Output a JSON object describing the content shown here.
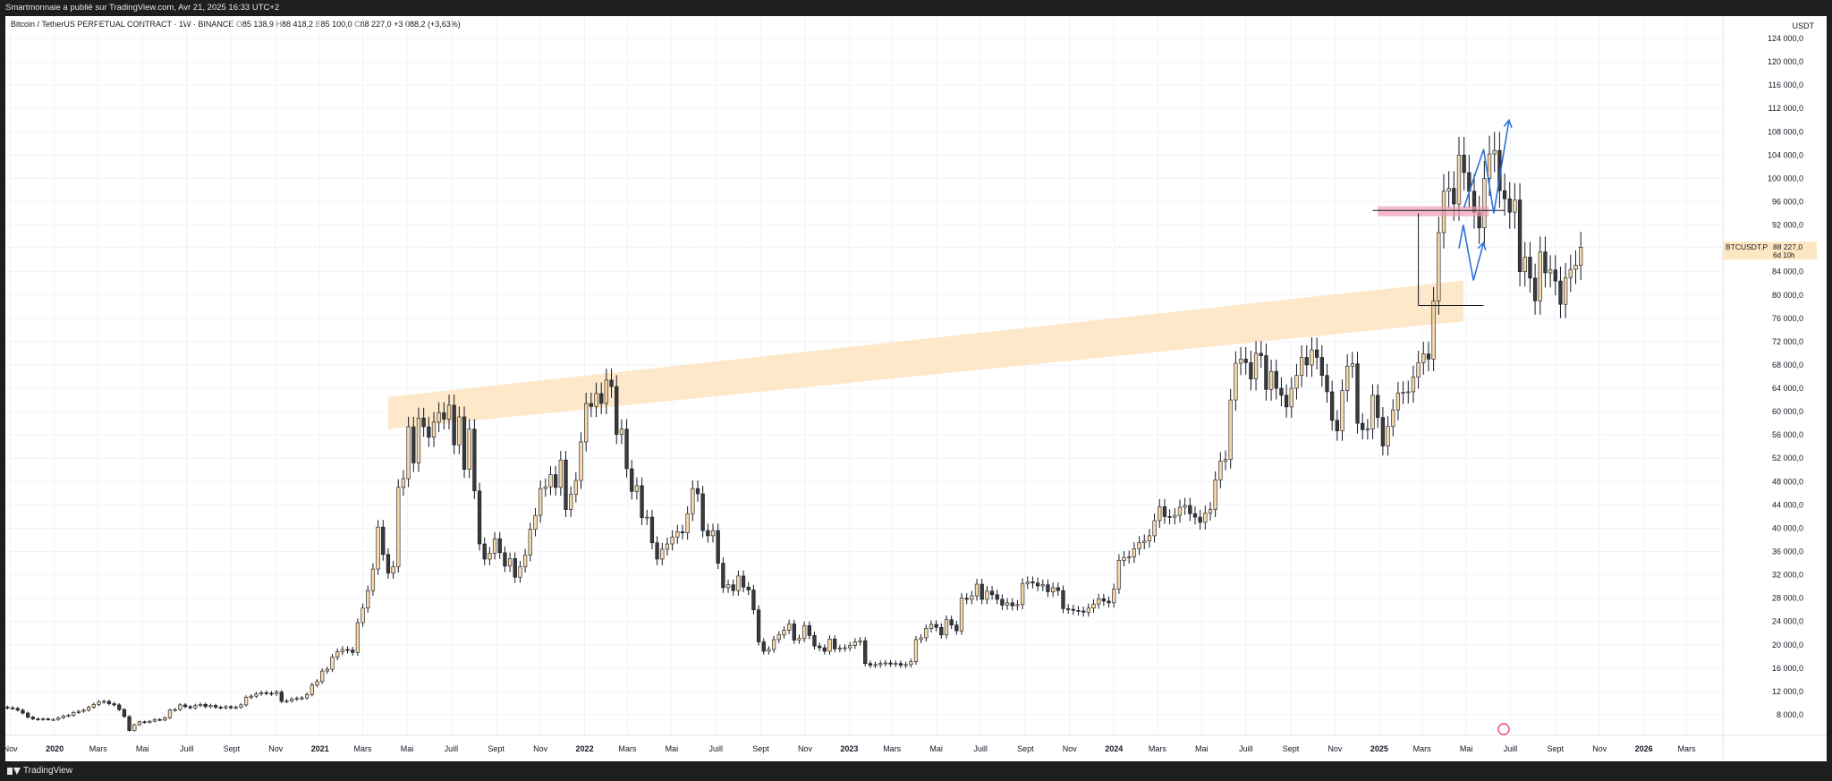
{
  "header": {
    "published_line": "Smartmonnaie a publié sur TradingView.com, Avr 21, 2025 16:33 UTC+2"
  },
  "legend": {
    "symbol": "Bitcoin / TetherUS PERPETUAL CONTRACT · 1W · BINANCE",
    "open_key": "O",
    "open": "85 138,9",
    "high_key": "H",
    "high": "88 418,2",
    "low_key": "B",
    "low": "85 100,0",
    "close_key": "C",
    "close": "88 227,0",
    "change": "+3 088,2 (+3,63%)"
  },
  "footer": {
    "brand": "TradingView"
  },
  "price_tag": {
    "ticker": "BTCUSDT.P",
    "price": "88 227,0",
    "countdown": "6d 10h"
  },
  "colors": {
    "up": "#f6d8a9",
    "down": "#3a3a3a",
    "zone": "#fde4c0",
    "projection": "#2f6fd6",
    "resistance": "#ef9db3",
    "tag_bg": "#fde7c2"
  },
  "chart_data": {
    "type": "candlestick",
    "title": "Bitcoin / TetherUS PERPETUAL CONTRACT · 1W · BINANCE",
    "y_unit": "USDT",
    "ylim": [
      2000,
      128000
    ],
    "yticks": [
      "124 000,0",
      "120 000,0",
      "116 000,0",
      "112 000,0",
      "108 000,0",
      "104 000,0",
      "100 000,0",
      "96 000,0",
      "92 000,0",
      "84 000,0",
      "80 000,0",
      "76 000,0",
      "72 000,0",
      "68 000,0",
      "64 000,0",
      "60 000,0",
      "56 000,0",
      "52 000,0",
      "48 000,0",
      "44 000,0",
      "40 000,0",
      "36 000,0",
      "32 000,0",
      "28 000,0",
      "24 000,0",
      "20 000,0",
      "16 000,0",
      "12 000,0",
      "8 000,0"
    ],
    "ytick_values": [
      124000,
      120000,
      116000,
      112000,
      108000,
      104000,
      100000,
      96000,
      92000,
      84000,
      80000,
      76000,
      72000,
      68000,
      64000,
      60000,
      56000,
      52000,
      48000,
      44000,
      40000,
      36000,
      32000,
      28000,
      24000,
      20000,
      16000,
      12000,
      8000
    ],
    "xlim": [
      "2019-10-25",
      "2026-04-20"
    ],
    "xticks": [
      {
        "label": "Nov",
        "date": "2019-11-01",
        "bold": false
      },
      {
        "label": "2020",
        "date": "2020-01-01",
        "bold": true
      },
      {
        "label": "Mars",
        "date": "2020-03-01",
        "bold": false
      },
      {
        "label": "Mai",
        "date": "2020-05-01",
        "bold": false
      },
      {
        "label": "Juill",
        "date": "2020-07-01",
        "bold": false
      },
      {
        "label": "Sept",
        "date": "2020-09-01",
        "bold": false
      },
      {
        "label": "Nov",
        "date": "2020-11-01",
        "bold": false
      },
      {
        "label": "2021",
        "date": "2021-01-01",
        "bold": true
      },
      {
        "label": "Mars",
        "date": "2021-03-01",
        "bold": false
      },
      {
        "label": "Mai",
        "date": "2021-05-01",
        "bold": false
      },
      {
        "label": "Juill",
        "date": "2021-07-01",
        "bold": false
      },
      {
        "label": "Sept",
        "date": "2021-09-01",
        "bold": false
      },
      {
        "label": "Nov",
        "date": "2021-11-01",
        "bold": false
      },
      {
        "label": "2022",
        "date": "2022-01-01",
        "bold": true
      },
      {
        "label": "Mars",
        "date": "2022-03-01",
        "bold": false
      },
      {
        "label": "Mai",
        "date": "2022-05-01",
        "bold": false
      },
      {
        "label": "Juill",
        "date": "2022-07-01",
        "bold": false
      },
      {
        "label": "Sept",
        "date": "2022-09-01",
        "bold": false
      },
      {
        "label": "Nov",
        "date": "2022-11-01",
        "bold": false
      },
      {
        "label": "2023",
        "date": "2023-01-01",
        "bold": true
      },
      {
        "label": "Mars",
        "date": "2023-03-01",
        "bold": false
      },
      {
        "label": "Mai",
        "date": "2023-05-01",
        "bold": false
      },
      {
        "label": "Juill",
        "date": "2023-07-01",
        "bold": false
      },
      {
        "label": "Sept",
        "date": "2023-09-01",
        "bold": false
      },
      {
        "label": "Nov",
        "date": "2023-11-01",
        "bold": false
      },
      {
        "label": "2024",
        "date": "2024-01-01",
        "bold": true
      },
      {
        "label": "Mars",
        "date": "2024-03-01",
        "bold": false
      },
      {
        "label": "Mai",
        "date": "2024-05-01",
        "bold": false
      },
      {
        "label": "Juill",
        "date": "2024-07-01",
        "bold": false
      },
      {
        "label": "Sept",
        "date": "2024-09-01",
        "bold": false
      },
      {
        "label": "Nov",
        "date": "2024-11-01",
        "bold": false
      },
      {
        "label": "2025",
        "date": "2025-01-01",
        "bold": true
      },
      {
        "label": "Mars",
        "date": "2025-03-01",
        "bold": false
      },
      {
        "label": "Mai",
        "date": "2025-05-01",
        "bold": false
      },
      {
        "label": "Juill",
        "date": "2025-07-01",
        "bold": false
      },
      {
        "label": "Sept",
        "date": "2025-09-01",
        "bold": false
      },
      {
        "label": "Nov",
        "date": "2025-11-01",
        "bold": false
      },
      {
        "label": "2026",
        "date": "2026-01-01",
        "bold": true
      },
      {
        "label": "Mars",
        "date": "2026-03-01",
        "bold": false
      }
    ],
    "grid": true,
    "series": [
      {
        "start_week": "2019-10-28",
        "interval_days": 7,
        "closes": [
          9200,
          9100,
          8800,
          8300,
          7600,
          7300,
          7200,
          7300,
          7200,
          7200,
          7500,
          7800,
          7900,
          8400,
          8600,
          8800,
          9300,
          9800,
          10200,
          10300,
          9900,
          9700,
          8900,
          7700,
          5300,
          6300,
          6800,
          6700,
          6900,
          7200,
          7100,
          7500,
          8800,
          8900,
          9700,
          9400,
          9200,
          9600,
          9800,
          9400,
          9600,
          9300,
          9200,
          9400,
          9200,
          9300,
          9700,
          11000,
          11200,
          11600,
          11800,
          11700,
          11600,
          11900,
          10300,
          10400,
          10700,
          10800,
          10900,
          11500,
          13100,
          13700,
          15500,
          15800,
          17900,
          18800,
          19200,
          19100,
          18700,
          23800,
          26300,
          29300,
          33000,
          40200,
          35500,
          32300,
          33400,
          47000,
          48500,
          57400,
          51200,
          58900,
          57400,
          55600,
          58200,
          59800,
          58700,
          61100,
          54300,
          59100,
          50100,
          57000,
          46400,
          37300,
          34700,
          35700,
          38200,
          35800,
          33500,
          34800,
          31600,
          33400,
          35400,
          39800,
          42200,
          46800,
          47100,
          49200,
          47000,
          51700,
          43200,
          45800,
          48200,
          54800,
          61400,
          60900,
          63100,
          61400,
          65400,
          64300,
          56100,
          57000,
          50200,
          46300,
          47300,
          41800,
          41900,
          37500,
          34700,
          36400,
          37300,
          38500,
          39400,
          39200,
          42500,
          46800,
          45900,
          39600,
          38700,
          39600,
          34000,
          29800,
          30300,
          29300,
          31800,
          29900,
          29400,
          26000,
          20500,
          18900,
          19200,
          20900,
          21700,
          22500,
          23600,
          20800,
          21100,
          23300,
          21600,
          19800,
          19500,
          18900,
          21000,
          19300,
          19400,
          19500,
          19900,
          20500,
          20700,
          16800,
          16500,
          16600,
          16800,
          16900,
          16700,
          16800,
          16500,
          16600,
          17100,
          20900,
          21200,
          22800,
          23500,
          23000,
          21700,
          24300,
          23400,
          22400,
          28000,
          27800,
          28400,
          30400,
          27800,
          29200,
          28600,
          27800,
          26800,
          27200,
          26700,
          26900,
          30500,
          30800,
          30600,
          30100,
          30300,
          29100,
          29800,
          29300,
          26200,
          26100,
          25900,
          25800,
          25600,
          26300,
          27000,
          27900,
          27500,
          27200,
          29600,
          34500,
          35000,
          35100,
          36500,
          37500,
          37800,
          38700,
          41300,
          43700,
          42000,
          41900,
          42200,
          43600,
          43900,
          42500,
          41900,
          41000,
          42600,
          43200,
          48300,
          51500,
          51800,
          62000,
          68300,
          69000,
          68400,
          65600,
          70000,
          69600,
          63800,
          66900,
          64000,
          62800,
          60800,
          64000,
          66200,
          69300,
          68000,
          70600,
          69300,
          66200,
          63400,
          58500,
          56700,
          63600,
          67800,
          68200,
          58000,
          56900,
          57000,
          62800,
          59000,
          54100,
          57500,
          60300,
          63200,
          63300,
          63400,
          65900,
          68400,
          69900,
          69000,
          79000,
          90700,
          97800,
          98300,
          95600,
          104000,
          101000,
          97800,
          94200,
          91500,
          100000,
          104200,
          104800,
          97900,
          96500,
          94200,
          96300,
          84000,
          86500,
          82900,
          79000,
          87400,
          83800,
          84300,
          82400,
          78400,
          83000,
          84400,
          85100,
          88200
        ],
        "opens": [
          9300,
          9200,
          9100,
          8800,
          8300,
          7600,
          7300,
          7200,
          7300,
          7200,
          7200,
          7500,
          7800,
          7900,
          8400,
          8600,
          8800,
          9300,
          9800,
          10200,
          10300,
          9900,
          9700,
          8900,
          7700,
          5300,
          6300,
          6800,
          6700,
          6900,
          7200,
          7100,
          7500,
          8800,
          8900,
          9700,
          9400,
          9200,
          9600,
          9800,
          9400,
          9600,
          9300,
          9200,
          9400,
          9200,
          9300,
          9700,
          11000,
          11200,
          11600,
          11800,
          11700,
          11600,
          11900,
          10300,
          10400,
          10700,
          10800,
          10900,
          11500,
          13100,
          13700,
          15500,
          15800,
          17900,
          18800,
          19200,
          19100,
          18700,
          23800,
          26300,
          29300,
          33000,
          40200,
          35500,
          32300,
          33400,
          47000,
          48500,
          57400,
          51200,
          58900,
          57400,
          55600,
          58200,
          59800,
          58700,
          61100,
          54300,
          59100,
          50100,
          57000,
          46400,
          37300,
          34700,
          35700,
          38200,
          35800,
          33500,
          34800,
          31600,
          33400,
          35400,
          39800,
          42200,
          46800,
          47100,
          49200,
          47000,
          51700,
          43200,
          45800,
          48200,
          54800,
          61400,
          60900,
          63100,
          61400,
          65400,
          64300,
          56100,
          57000,
          50200,
          46300,
          47300,
          41800,
          41900,
          37500,
          34700,
          36400,
          37300,
          38500,
          39400,
          39200,
          42500,
          46800,
          45900,
          39600,
          38700,
          39600,
          34000,
          29800,
          30300,
          29300,
          31800,
          29900,
          29400,
          26000,
          20500,
          18900,
          19200,
          20900,
          21700,
          22500,
          23600,
          20800,
          21100,
          23300,
          21600,
          19800,
          19500,
          18900,
          21000,
          19300,
          19400,
          19500,
          19900,
          20500,
          20700,
          16800,
          16500,
          16600,
          16800,
          16900,
          16700,
          16800,
          16500,
          16600,
          17100,
          20900,
          21200,
          22800,
          23500,
          23000,
          21700,
          24300,
          23400,
          22400,
          28000,
          27800,
          28400,
          30400,
          27800,
          29200,
          28600,
          27800,
          26800,
          27200,
          26700,
          26900,
          30500,
          30800,
          30600,
          30100,
          30300,
          29100,
          29800,
          29300,
          26200,
          26100,
          25900,
          25800,
          25600,
          26300,
          27000,
          27900,
          27500,
          27200,
          29600,
          34500,
          35000,
          35100,
          36500,
          37500,
          37800,
          38700,
          41300,
          43700,
          42000,
          41900,
          42200,
          43600,
          43900,
          42500,
          41900,
          41000,
          42600,
          43200,
          48300,
          51500,
          51800,
          62000,
          68300,
          69000,
          68400,
          65600,
          70000,
          69600,
          63800,
          66900,
          64000,
          62800,
          60800,
          64000,
          66200,
          69300,
          68000,
          70600,
          69300,
          66200,
          63400,
          58500,
          56700,
          63600,
          67800,
          68200,
          58000,
          56900,
          57000,
          62800,
          59000,
          54100,
          57500,
          60300,
          63200,
          63300,
          63400,
          65900,
          68400,
          69900,
          69000,
          79000,
          90700,
          97800,
          98300,
          95600,
          104000,
          101000,
          97800,
          94200,
          91500,
          100000,
          104200,
          104800,
          97900,
          96500,
          94200,
          96300,
          84000,
          86500,
          82900,
          79000,
          87400,
          83800,
          84300,
          82400,
          78400,
          83000,
          84400,
          85100
        ]
      }
    ],
    "annotations": {
      "zone_band": {
        "start_date": "2021-04-05",
        "end_date": "2025-04-27",
        "lower_start": 57000,
        "upper_start": 62500,
        "lower_end": 75500,
        "upper_end": 82500
      },
      "resistance_line": {
        "start_date": "2024-12-23",
        "end_date": "2025-06-23",
        "price": 94500
      },
      "resistance_zone": {
        "start_date": "2024-12-30",
        "end_date": "2025-06-01",
        "low": 93500,
        "high": 95200
      },
      "support_line": {
        "start_date": "2025-02-24",
        "end_date": "2025-05-25",
        "price": 78200
      },
      "range_box_left": {
        "date": "2025-02-24",
        "from": 78200,
        "to": 94000
      },
      "projection_small": [
        [
          "2025-04-21",
          88000
        ],
        [
          "2025-04-27",
          92000
        ],
        [
          "2025-05-11",
          82500
        ],
        [
          "2025-05-25",
          89000
        ]
      ],
      "projection_big": [
        [
          "2025-04-28",
          95000
        ],
        [
          "2025-05-25",
          105000
        ],
        [
          "2025-06-08",
          94000
        ],
        [
          "2025-06-29",
          110000
        ]
      ],
      "last_price": 88227
    }
  }
}
